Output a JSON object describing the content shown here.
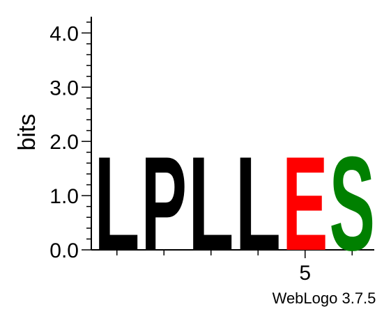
{
  "chart_data": {
    "type": "sequence-logo",
    "ylabel": "bits",
    "ylim": [
      0,
      4.3
    ],
    "y_tick_labels": [
      "0.0",
      "1.0",
      "2.0",
      "3.0",
      "4.0"
    ],
    "y_tick_values": [
      0,
      1,
      2,
      3,
      4
    ],
    "x_tick_label": "5",
    "x_tick_position": 5,
    "positions": [
      {
        "position": 1,
        "letter": "L",
        "bits": 1.77,
        "color": "#000000"
      },
      {
        "position": 2,
        "letter": "P",
        "bits": 1.77,
        "color": "#000000"
      },
      {
        "position": 3,
        "letter": "L",
        "bits": 1.77,
        "color": "#000000"
      },
      {
        "position": 4,
        "letter": "L",
        "bits": 1.77,
        "color": "#000000"
      },
      {
        "position": 5,
        "letter": "E",
        "bits": 1.77,
        "color": "#ff0000"
      },
      {
        "position": 6,
        "letter": "S",
        "bits": 1.77,
        "color": "#008000"
      }
    ],
    "footer": "WebLogo 3.7.5"
  }
}
